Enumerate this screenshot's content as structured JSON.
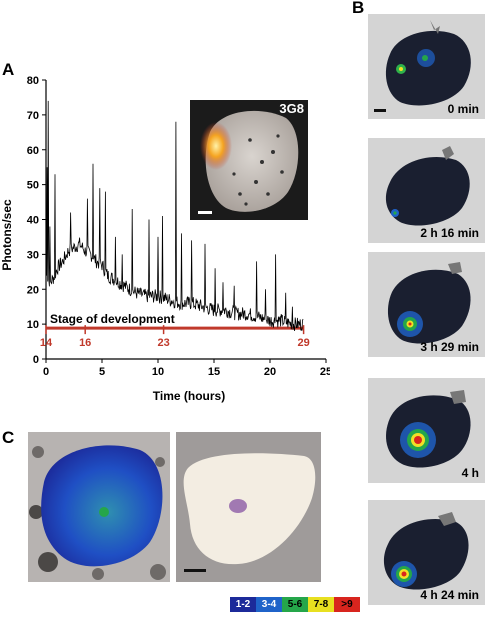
{
  "panels": {
    "a_letter": "A",
    "b_letter": "B",
    "c_letter": "C"
  },
  "panel_a": {
    "inset_label": "3G8",
    "stage_label": "Stage of development",
    "stage_ticks": [
      {
        "label": "14",
        "hours": 0
      },
      {
        "label": "16",
        "hours": 3.5
      },
      {
        "label": "23",
        "hours": 10.5
      },
      {
        "label": "29",
        "hours": 23
      }
    ],
    "colors": {
      "trace": "#000000",
      "stage": "#c0392b"
    }
  },
  "chart_data": {
    "type": "line",
    "xlabel": "Time (hours)",
    "ylabel": "Photons/sec",
    "xlim": [
      0,
      25
    ],
    "ylim": [
      0,
      80
    ],
    "xticks": [
      0,
      5,
      10,
      15,
      20,
      25
    ],
    "yticks": [
      0,
      10,
      20,
      30,
      40,
      50,
      60,
      70,
      80
    ],
    "grid": false,
    "series": [
      {
        "x": [
          0,
          0.2,
          0.4,
          0.6,
          0.8,
          1,
          1.5,
          2,
          2.5,
          3,
          3.5,
          4,
          4.5,
          5,
          5.5,
          6,
          7,
          8,
          9,
          10,
          11,
          12,
          13,
          14,
          15,
          16,
          17,
          18,
          19,
          20,
          21,
          22,
          23
        ],
        "y": [
          24,
          23,
          22,
          23,
          24,
          26,
          28,
          31,
          32,
          33,
          31,
          30,
          28,
          27,
          24,
          23,
          21,
          19,
          18,
          18,
          17,
          16,
          16,
          15,
          14,
          14,
          13,
          13,
          12,
          11,
          11,
          10,
          10
        ]
      }
    ],
    "spikes": [
      {
        "x": 0.1,
        "y": 55
      },
      {
        "x": 0.2,
        "y": 74
      },
      {
        "x": 0.35,
        "y": 38
      },
      {
        "x": 0.8,
        "y": 53
      },
      {
        "x": 2.2,
        "y": 42
      },
      {
        "x": 3.7,
        "y": 46
      },
      {
        "x": 4.2,
        "y": 56
      },
      {
        "x": 4.8,
        "y": 49
      },
      {
        "x": 5.3,
        "y": 48
      },
      {
        "x": 6.2,
        "y": 35
      },
      {
        "x": 6.8,
        "y": 30
      },
      {
        "x": 7.7,
        "y": 43
      },
      {
        "x": 9.2,
        "y": 40
      },
      {
        "x": 10.0,
        "y": 35
      },
      {
        "x": 10.4,
        "y": 41
      },
      {
        "x": 11.6,
        "y": 68
      },
      {
        "x": 12.1,
        "y": 36
      },
      {
        "x": 13.0,
        "y": 34
      },
      {
        "x": 14.2,
        "y": 33
      },
      {
        "x": 15.1,
        "y": 26
      },
      {
        "x": 15.8,
        "y": 22
      },
      {
        "x": 16.8,
        "y": 21
      },
      {
        "x": 18.8,
        "y": 28
      },
      {
        "x": 19.6,
        "y": 20
      },
      {
        "x": 20.5,
        "y": 30
      },
      {
        "x": 21.4,
        "y": 19
      },
      {
        "x": 22.0,
        "y": 15
      },
      {
        "x": 23.0,
        "y": 25
      }
    ]
  },
  "panel_b": {
    "frames": [
      {
        "label": "0 min",
        "signal": 0.35
      },
      {
        "label": "2 h 16 min",
        "signal": 0.25
      },
      {
        "label": "3 h 29 min",
        "signal": 0.7
      },
      {
        "label": "4 h",
        "signal": 1.0
      },
      {
        "label": "4 h 24 min",
        "signal": 0.85
      }
    ]
  },
  "legend": {
    "items": [
      {
        "label": "1-2",
        "color": "#1c2a9a",
        "text": "#ffffff"
      },
      {
        "label": "3-4",
        "color": "#1f63c9",
        "text": "#ffffff"
      },
      {
        "label": "5-6",
        "color": "#25a64a",
        "text": "#000000"
      },
      {
        "label": "7-8",
        "color": "#e8e020",
        "text": "#000000"
      },
      {
        "label": ">9",
        "color": "#d8251e",
        "text": "#000000"
      }
    ]
  }
}
